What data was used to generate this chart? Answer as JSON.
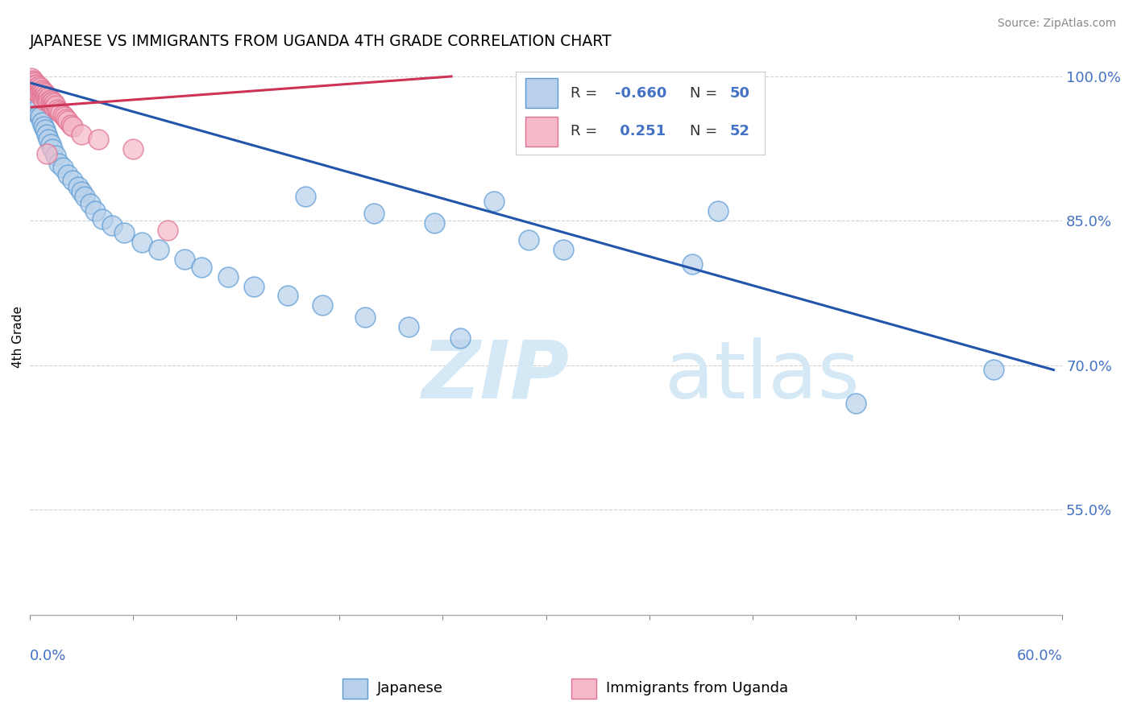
{
  "title": "JAPANESE VS IMMIGRANTS FROM UGANDA 4TH GRADE CORRELATION CHART",
  "source_text": "Source: ZipAtlas.com",
  "ylabel_label": "4th Grade",
  "xlim": [
    0.0,
    0.6
  ],
  "ylim": [
    0.44,
    1.018
  ],
  "yticks": [
    0.55,
    0.7,
    0.85,
    1.0
  ],
  "ytick_labels": [
    "55.0%",
    "70.0%",
    "85.0%",
    "100.0%"
  ],
  "blue_R": -0.66,
  "blue_N": 50,
  "pink_R": 0.251,
  "pink_N": 52,
  "blue_color": "#b8d0ea",
  "blue_edge": "#5b9bd5",
  "pink_color": "#f4b8c8",
  "pink_edge": "#e07090",
  "blue_line_color": "#2255aa",
  "pink_line_color": "#cc3355",
  "watermark_color": "#d5e8f5",
  "grid_color": "#cccccc",
  "tick_color": "#4472c4",
  "blue_line_x": [
    0.001,
    0.595
  ],
  "blue_line_y": [
    0.993,
    0.695
  ],
  "pink_line_x": [
    0.001,
    0.245
  ],
  "pink_line_y": [
    0.968,
    1.0
  ],
  "blue_points_x": [
    0.001,
    0.001,
    0.001,
    0.002,
    0.002,
    0.003,
    0.004,
    0.005,
    0.006,
    0.007,
    0.008,
    0.009,
    0.01,
    0.011,
    0.012,
    0.013,
    0.015,
    0.017,
    0.019,
    0.022,
    0.025,
    0.028,
    0.03,
    0.032,
    0.035,
    0.038,
    0.042,
    0.048,
    0.055,
    0.065,
    0.075,
    0.09,
    0.1,
    0.115,
    0.13,
    0.15,
    0.17,
    0.195,
    0.22,
    0.25,
    0.16,
    0.2,
    0.235,
    0.29,
    0.31,
    0.385,
    0.4,
    0.56,
    0.48,
    0.27
  ],
  "blue_points_y": [
    0.99,
    0.985,
    0.98,
    0.975,
    0.97,
    0.968,
    0.965,
    0.96,
    0.958,
    0.952,
    0.948,
    0.945,
    0.94,
    0.935,
    0.93,
    0.925,
    0.918,
    0.91,
    0.905,
    0.898,
    0.892,
    0.885,
    0.88,
    0.875,
    0.868,
    0.86,
    0.852,
    0.845,
    0.838,
    0.828,
    0.82,
    0.81,
    0.802,
    0.792,
    0.782,
    0.772,
    0.762,
    0.75,
    0.74,
    0.728,
    0.875,
    0.858,
    0.848,
    0.83,
    0.82,
    0.805,
    0.86,
    0.695,
    0.66,
    0.87
  ],
  "pink_points_x": [
    0.001,
    0.001,
    0.001,
    0.001,
    0.002,
    0.002,
    0.002,
    0.002,
    0.003,
    0.003,
    0.003,
    0.004,
    0.004,
    0.004,
    0.005,
    0.005,
    0.005,
    0.006,
    0.006,
    0.007,
    0.007,
    0.007,
    0.008,
    0.008,
    0.008,
    0.009,
    0.009,
    0.01,
    0.01,
    0.011,
    0.011,
    0.012,
    0.012,
    0.013,
    0.013,
    0.014,
    0.014,
    0.015,
    0.016,
    0.017,
    0.018,
    0.019,
    0.02,
    0.021,
    0.022,
    0.024,
    0.025,
    0.03,
    0.04,
    0.06,
    0.08,
    0.01
  ],
  "pink_points_y": [
    0.998,
    0.995,
    0.992,
    0.988,
    0.996,
    0.993,
    0.99,
    0.986,
    0.994,
    0.991,
    0.987,
    0.992,
    0.988,
    0.984,
    0.99,
    0.986,
    0.982,
    0.988,
    0.984,
    0.986,
    0.982,
    0.978,
    0.984,
    0.98,
    0.976,
    0.982,
    0.978,
    0.98,
    0.976,
    0.978,
    0.974,
    0.976,
    0.972,
    0.974,
    0.97,
    0.972,
    0.968,
    0.97,
    0.966,
    0.964,
    0.962,
    0.96,
    0.958,
    0.956,
    0.954,
    0.95,
    0.948,
    0.94,
    0.935,
    0.925,
    0.84,
    0.92
  ]
}
